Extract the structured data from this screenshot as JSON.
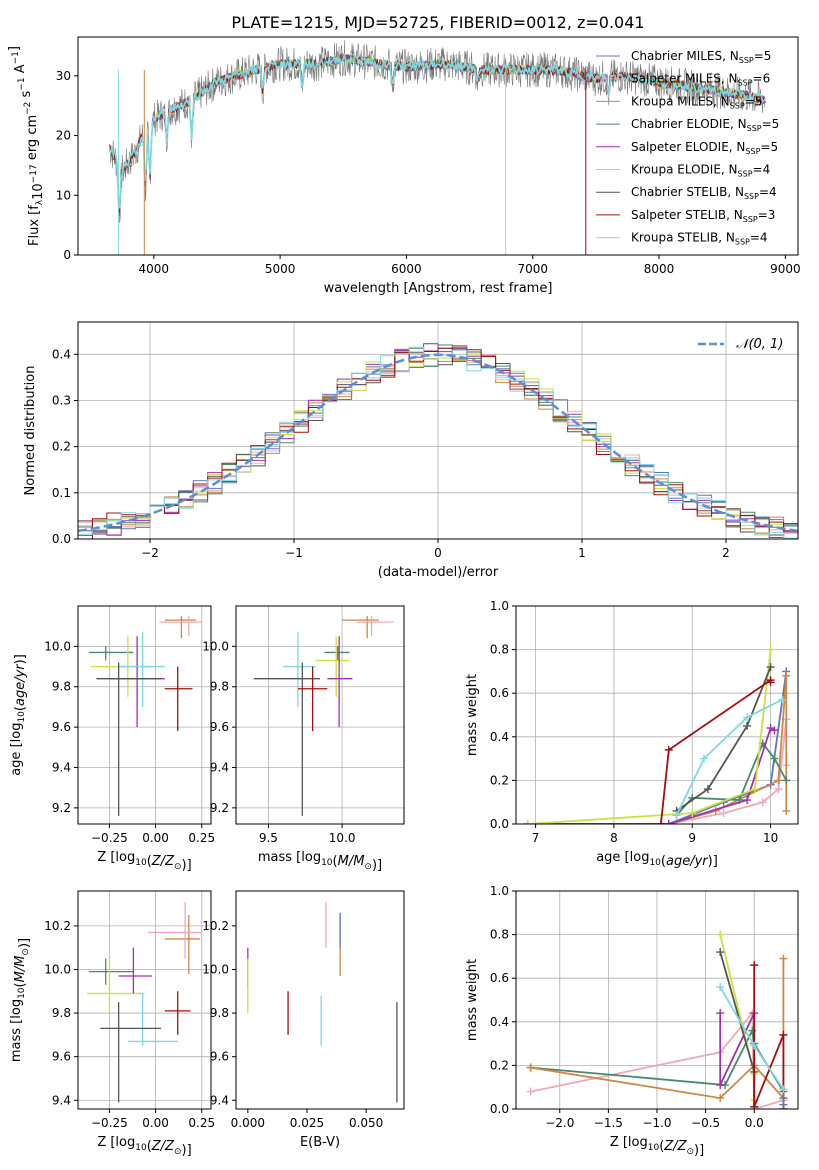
{
  "figure_title": "PLATE=1215, MJD=52725, FIBERID=0012, z=0.041",
  "colors": {
    "series": [
      "#5b78b8",
      "#f0a8b8",
      "#cc8844",
      "#4a8a6a",
      "#a030b0",
      "#cce040",
      "#555555",
      "#a01010",
      "#7ed8e0"
    ],
    "gauss": "#5b8fd8"
  },
  "chart_data": [
    {
      "id": "spectrum",
      "type": "line",
      "xlabel": "wavelength [Angstrom, rest frame]",
      "ylabel": "Flux [f_λ 10^-17 erg cm^-2 s^-1 A^-1]",
      "xlim": [
        3400,
        9100
      ],
      "ylim": [
        0,
        36.5
      ],
      "xticks": [
        4000,
        5000,
        6000,
        7000,
        8000,
        9000
      ],
      "yticks": [
        0,
        10,
        20,
        30
      ],
      "grid": false,
      "legend_position": "top-right",
      "continuum": [
        [
          3650,
          18
        ],
        [
          3750,
          14
        ],
        [
          3850,
          17
        ],
        [
          3950,
          22
        ],
        [
          4100,
          24
        ],
        [
          4300,
          26
        ],
        [
          4500,
          29
        ],
        [
          4800,
          31
        ],
        [
          5000,
          32
        ],
        [
          5300,
          32
        ],
        [
          5500,
          33
        ],
        [
          5800,
          32
        ],
        [
          6000,
          31.5
        ],
        [
          6300,
          32
        ],
        [
          6600,
          31
        ],
        [
          6900,
          31
        ],
        [
          7200,
          31
        ],
        [
          7500,
          29.5
        ],
        [
          7700,
          30
        ],
        [
          8000,
          29
        ],
        [
          8300,
          28
        ],
        [
          8600,
          27
        ],
        [
          8840,
          26
        ]
      ],
      "series": [
        {
          "name": "Chabrier MILES",
          "nssp": "5"
        },
        {
          "name": "Salpeter MILES",
          "nssp": "6"
        },
        {
          "name": "Kroupa MILES",
          "nssp": "5"
        },
        {
          "name": "Chabrier ELODIE",
          "nssp": "5"
        },
        {
          "name": "Salpeter ELODIE",
          "nssp": "5"
        },
        {
          "name": "Kroupa ELODIE",
          "nssp": "4"
        },
        {
          "name": "Chabrier STELIB",
          "nssp": "4"
        },
        {
          "name": "Salpeter STELIB",
          "nssp": "3"
        },
        {
          "name": "Kroupa STELIB",
          "nssp": "4"
        }
      ]
    },
    {
      "id": "residuals",
      "type": "histogram",
      "xlabel": "(data-model)/error",
      "ylabel": "Normed distribution",
      "xlim": [
        -2.5,
        2.5
      ],
      "ylim": [
        0,
        0.47
      ],
      "xticks": [
        -2,
        -1,
        0,
        1,
        2
      ],
      "yticks": [
        0.0,
        0.1,
        0.2,
        0.3,
        0.4
      ],
      "grid": true,
      "legend_position": "top-right",
      "legend_label": "N(0,1)",
      "bin_width": 0.1
    },
    {
      "id": "age_vs_Z",
      "type": "errorbar",
      "xlabel": "Z [log10(Z/Z☉)]",
      "ylabel": "age [log10(age/yr)]",
      "xlim": [
        -0.42,
        0.3
      ],
      "ylim": [
        9.12,
        10.2
      ],
      "xticks": [
        -0.25,
        0.0,
        0.25
      ],
      "yticks": [
        9.2,
        9.4,
        9.6,
        9.8,
        10.0
      ],
      "grid": true,
      "points": [
        {
          "x": -0.27,
          "y": 9.97,
          "xlo": -0.36,
          "xhi": -0.12,
          "ylo": 9.93,
          "yhi": 10.0,
          "c": 3
        },
        {
          "x": -0.15,
          "y": 9.9,
          "xlo": -0.35,
          "xhi": 0.0,
          "ylo": 9.75,
          "yhi": 10.05,
          "c": 5
        },
        {
          "x": -0.1,
          "y": 9.84,
          "xlo": -0.25,
          "xhi": 0.05,
          "ylo": 9.6,
          "yhi": 10.05,
          "c": 4
        },
        {
          "x": -0.07,
          "y": 9.9,
          "xlo": -0.2,
          "xhi": 0.05,
          "ylo": 9.7,
          "yhi": 10.07,
          "c": 8
        },
        {
          "x": -0.2,
          "y": 9.84,
          "xlo": -0.32,
          "xhi": 0.03,
          "ylo": 9.16,
          "yhi": 9.92,
          "c": 6
        },
        {
          "x": 0.12,
          "y": 9.79,
          "xlo": 0.05,
          "xhi": 0.2,
          "ylo": 9.58,
          "yhi": 9.9,
          "c": 7
        },
        {
          "x": 0.14,
          "y": 10.13,
          "xlo": 0.05,
          "xhi": 0.22,
          "ylo": 10.04,
          "yhi": 10.15,
          "c": 2
        },
        {
          "x": 0.18,
          "y": 10.12,
          "xlo": 0.02,
          "xhi": 0.25,
          "ylo": 10.05,
          "yhi": 10.15,
          "c": 1
        }
      ]
    },
    {
      "id": "age_vs_mass",
      "type": "errorbar",
      "xlabel": "mass [log10(M/M☉)]",
      "ylabel": "",
      "xlim": [
        9.28,
        10.42
      ],
      "ylim": [
        9.12,
        10.2
      ],
      "xticks": [
        9.5,
        10.0
      ],
      "yticks": [
        9.2,
        9.4,
        9.6,
        9.8,
        10.0
      ],
      "grid": true,
      "points": [
        {
          "x": 9.97,
          "y": 9.97,
          "xlo": 9.88,
          "xhi": 10.05,
          "ylo": 9.93,
          "yhi": 10.0,
          "c": 3
        },
        {
          "x": 9.96,
          "y": 9.93,
          "xlo": 9.82,
          "xhi": 10.05,
          "ylo": 9.75,
          "yhi": 10.05,
          "c": 5
        },
        {
          "x": 9.98,
          "y": 9.84,
          "xlo": 9.9,
          "xhi": 10.07,
          "ylo": 9.6,
          "yhi": 10.05,
          "c": 4
        },
        {
          "x": 9.7,
          "y": 9.9,
          "xlo": 9.6,
          "xhi": 9.82,
          "ylo": 9.7,
          "yhi": 10.07,
          "c": 8
        },
        {
          "x": 9.73,
          "y": 9.84,
          "xlo": 9.4,
          "xhi": 9.85,
          "ylo": 9.16,
          "yhi": 9.92,
          "c": 6
        },
        {
          "x": 9.8,
          "y": 9.79,
          "xlo": 9.7,
          "xhi": 9.9,
          "ylo": 9.58,
          "yhi": 9.9,
          "c": 7
        },
        {
          "x": 10.17,
          "y": 10.13,
          "xlo": 10.0,
          "xhi": 10.25,
          "ylo": 10.04,
          "yhi": 10.15,
          "c": 2
        },
        {
          "x": 10.2,
          "y": 10.12,
          "xlo": 10.1,
          "xhi": 10.35,
          "ylo": 10.05,
          "yhi": 10.15,
          "c": 1
        }
      ]
    },
    {
      "id": "weight_vs_age",
      "type": "line",
      "xlabel": "age [log10(age/yr)]",
      "ylabel": "mass weight",
      "xlim": [
        6.75,
        10.35
      ],
      "ylim": [
        0,
        1.0
      ],
      "xticks": [
        7,
        8,
        9,
        10
      ],
      "yticks": [
        0.0,
        0.2,
        0.4,
        0.6,
        0.8,
        1.0
      ],
      "grid": true,
      "series": [
        {
          "c": 0,
          "points": [
            [
              6.9,
              0.0
            ],
            [
              8.7,
              0.0
            ],
            [
              9.4,
              0.1
            ],
            [
              10.0,
              0.18
            ],
            [
              10.2,
              0.7
            ]
          ]
        },
        {
          "c": 1,
          "points": [
            [
              8.7,
              0.0
            ],
            [
              9.4,
              0.05
            ],
            [
              9.9,
              0.1
            ],
            [
              10.1,
              0.16
            ],
            [
              10.2,
              0.48
            ],
            [
              10.2,
              0.27
            ]
          ]
        },
        {
          "c": 2,
          "points": [
            [
              8.7,
              0.0
            ],
            [
              9.3,
              0.06
            ],
            [
              10.1,
              0.2
            ],
            [
              10.2,
              0.68
            ],
            [
              10.2,
              0.06
            ]
          ]
        },
        {
          "c": 3,
          "points": [
            [
              8.8,
              0.04
            ],
            [
              9.0,
              0.12
            ],
            [
              9.6,
              0.11
            ],
            [
              9.9,
              0.37
            ],
            [
              10.05,
              0.3
            ],
            [
              10.2,
              0.2
            ]
          ]
        },
        {
          "c": 4,
          "points": [
            [
              6.9,
              0.0
            ],
            [
              8.7,
              0.0
            ],
            [
              9.7,
              0.11
            ],
            [
              10.0,
              0.44
            ],
            [
              10.05,
              0.43
            ]
          ]
        },
        {
          "c": 5,
          "points": [
            [
              6.9,
              0.0
            ],
            [
              9.0,
              0.05
            ],
            [
              9.8,
              0.16
            ],
            [
              10.0,
              0.8
            ]
          ]
        },
        {
          "c": 6,
          "points": [
            [
              8.8,
              0.06
            ],
            [
              9.2,
              0.16
            ],
            [
              9.7,
              0.45
            ],
            [
              10.0,
              0.72
            ]
          ]
        },
        {
          "c": 7,
          "points": [
            [
              8.6,
              0.0
            ],
            [
              8.7,
              0.34
            ],
            [
              10.0,
              0.66
            ],
            [
              10.0,
              0.65
            ]
          ]
        },
        {
          "c": 8,
          "points": [
            [
              8.8,
              0.04
            ],
            [
              9.15,
              0.3
            ],
            [
              9.7,
              0.49
            ],
            [
              10.15,
              0.57
            ]
          ]
        }
      ]
    },
    {
      "id": "mass_vs_Z",
      "type": "errorbar",
      "xlabel": "Z [log10(Z/Z☉)]",
      "ylabel": "mass [log10(M/M☉)]",
      "xlim": [
        -0.42,
        0.3
      ],
      "ylim": [
        9.36,
        10.36
      ],
      "xticks": [
        -0.25,
        0.0,
        0.25
      ],
      "yticks": [
        9.4,
        9.6,
        9.8,
        10.0,
        10.2
      ],
      "grid": true,
      "points": [
        {
          "x": -0.27,
          "y": 9.99,
          "xlo": -0.36,
          "xhi": -0.12,
          "ylo": 9.93,
          "yhi": 10.05,
          "c": 3
        },
        {
          "x": -0.25,
          "y": 9.89,
          "xlo": -0.37,
          "xhi": -0.06,
          "ylo": 9.8,
          "yhi": 10.05,
          "c": 5
        },
        {
          "x": -0.12,
          "y": 9.97,
          "xlo": -0.2,
          "xhi": -0.02,
          "ylo": 9.89,
          "yhi": 10.1,
          "c": 4
        },
        {
          "x": -0.07,
          "y": 9.67,
          "xlo": -0.15,
          "xhi": 0.12,
          "ylo": 9.65,
          "yhi": 9.89,
          "c": 8
        },
        {
          "x": -0.2,
          "y": 9.73,
          "xlo": -0.3,
          "xhi": 0.03,
          "ylo": 9.39,
          "yhi": 9.85,
          "c": 6
        },
        {
          "x": 0.12,
          "y": 9.81,
          "xlo": 0.05,
          "xhi": 0.19,
          "ylo": 9.7,
          "yhi": 9.9,
          "c": 7
        },
        {
          "x": 0.18,
          "y": 10.14,
          "xlo": 0.05,
          "xhi": 0.24,
          "ylo": 9.98,
          "yhi": 10.25,
          "c": 2
        },
        {
          "x": 0.16,
          "y": 10.17,
          "xlo": -0.04,
          "xhi": 0.25,
          "ylo": 10.05,
          "yhi": 10.31,
          "c": 1
        }
      ]
    },
    {
      "id": "mass_vs_ebv",
      "type": "errorbar",
      "xlabel": "E(B-V)",
      "ylabel": "",
      "xlim": [
        -0.005,
        0.066
      ],
      "ylim": [
        9.36,
        10.36
      ],
      "xticks": [
        0.0,
        0.025,
        0.05
      ],
      "xticklabels": [
        "0.000",
        "0.025",
        "0.050"
      ],
      "yticks": [
        9.4,
        9.6,
        9.8,
        10.0,
        10.2
      ],
      "grid": false,
      "points": [
        {
          "x": 0.0,
          "y": 10.0,
          "ylo": 9.92,
          "yhi": 10.1,
          "c": 4
        },
        {
          "x": 0.0,
          "y": 9.93,
          "ylo": 9.8,
          "yhi": 10.05,
          "c": 5
        },
        {
          "x": 0.017,
          "y": 9.8,
          "ylo": 9.7,
          "yhi": 9.9,
          "c": 7
        },
        {
          "x": 0.031,
          "y": 9.8,
          "ylo": 9.65,
          "yhi": 9.88,
          "c": 8
        },
        {
          "x": 0.033,
          "y": 10.2,
          "ylo": 10.1,
          "yhi": 10.31,
          "c": 1
        },
        {
          "x": 0.039,
          "y": 10.14,
          "ylo": 9.97,
          "yhi": 10.25,
          "c": 2
        },
        {
          "x": 0.039,
          "y": 10.18,
          "ylo": 10.1,
          "yhi": 10.26,
          "c": 0
        },
        {
          "x": 0.063,
          "y": 9.6,
          "ylo": 9.39,
          "yhi": 9.85,
          "c": 6
        }
      ]
    },
    {
      "id": "weight_vs_Z",
      "type": "line",
      "xlabel": "Z [log10(Z/Z☉)]",
      "ylabel": "mass weight",
      "xlim": [
        -2.45,
        0.45
      ],
      "ylim": [
        0,
        1.0
      ],
      "xticks": [
        -2.0,
        -1.5,
        -1.0,
        -0.5,
        0.0
      ],
      "xticklabels": [
        "−2.0",
        "−1.5",
        "−1.0",
        "−0.5",
        "0.0"
      ],
      "yticks": [
        0.0,
        0.2,
        0.4,
        0.6,
        0.8,
        1.0
      ],
      "grid": true,
      "series": [
        {
          "c": 1,
          "points": [
            [
              -2.3,
              0.08
            ],
            [
              -0.35,
              0.26
            ],
            [
              -0.02,
              0.44
            ],
            [
              0.0,
              0.0
            ],
            [
              0.3,
              0.04
            ]
          ]
        },
        {
          "c": 3,
          "points": [
            [
              -2.3,
              0.19
            ],
            [
              -0.3,
              0.11
            ],
            [
              -0.02,
              0.36
            ],
            [
              0.0,
              0.3
            ],
            [
              0.3,
              0.08
            ]
          ]
        },
        {
          "c": 2,
          "points": [
            [
              -2.3,
              0.19
            ],
            [
              -0.35,
              0.05
            ],
            [
              0.0,
              0.2
            ],
            [
              0.3,
              0.05
            ],
            [
              0.3,
              0.69
            ]
          ]
        },
        {
          "c": 4,
          "points": [
            [
              -0.35,
              0.44
            ],
            [
              -0.35,
              0.11
            ],
            [
              0.0,
              0.44
            ],
            [
              0.0,
              0.01
            ]
          ]
        },
        {
          "c": 5,
          "points": [
            [
              -0.35,
              0.8
            ],
            [
              0.0,
              0.16
            ],
            [
              0.0,
              0.04
            ]
          ]
        },
        {
          "c": 6,
          "points": [
            [
              -0.35,
              0.72
            ],
            [
              0.0,
              0.17
            ],
            [
              0.0,
              0.01
            ]
          ]
        },
        {
          "c": 7,
          "points": [
            [
              0.0,
              0.66
            ],
            [
              0.0,
              0.01
            ],
            [
              0.3,
              0.34
            ],
            [
              0.3,
              0.0
            ]
          ]
        },
        {
          "c": 8,
          "points": [
            [
              -0.35,
              0.56
            ],
            [
              0.0,
              0.29
            ],
            [
              0.3,
              0.09
            ]
          ]
        },
        {
          "c": 0,
          "points": [
            [
              0.3,
              0.05
            ],
            [
              0.3,
              0.02
            ]
          ]
        }
      ]
    }
  ]
}
